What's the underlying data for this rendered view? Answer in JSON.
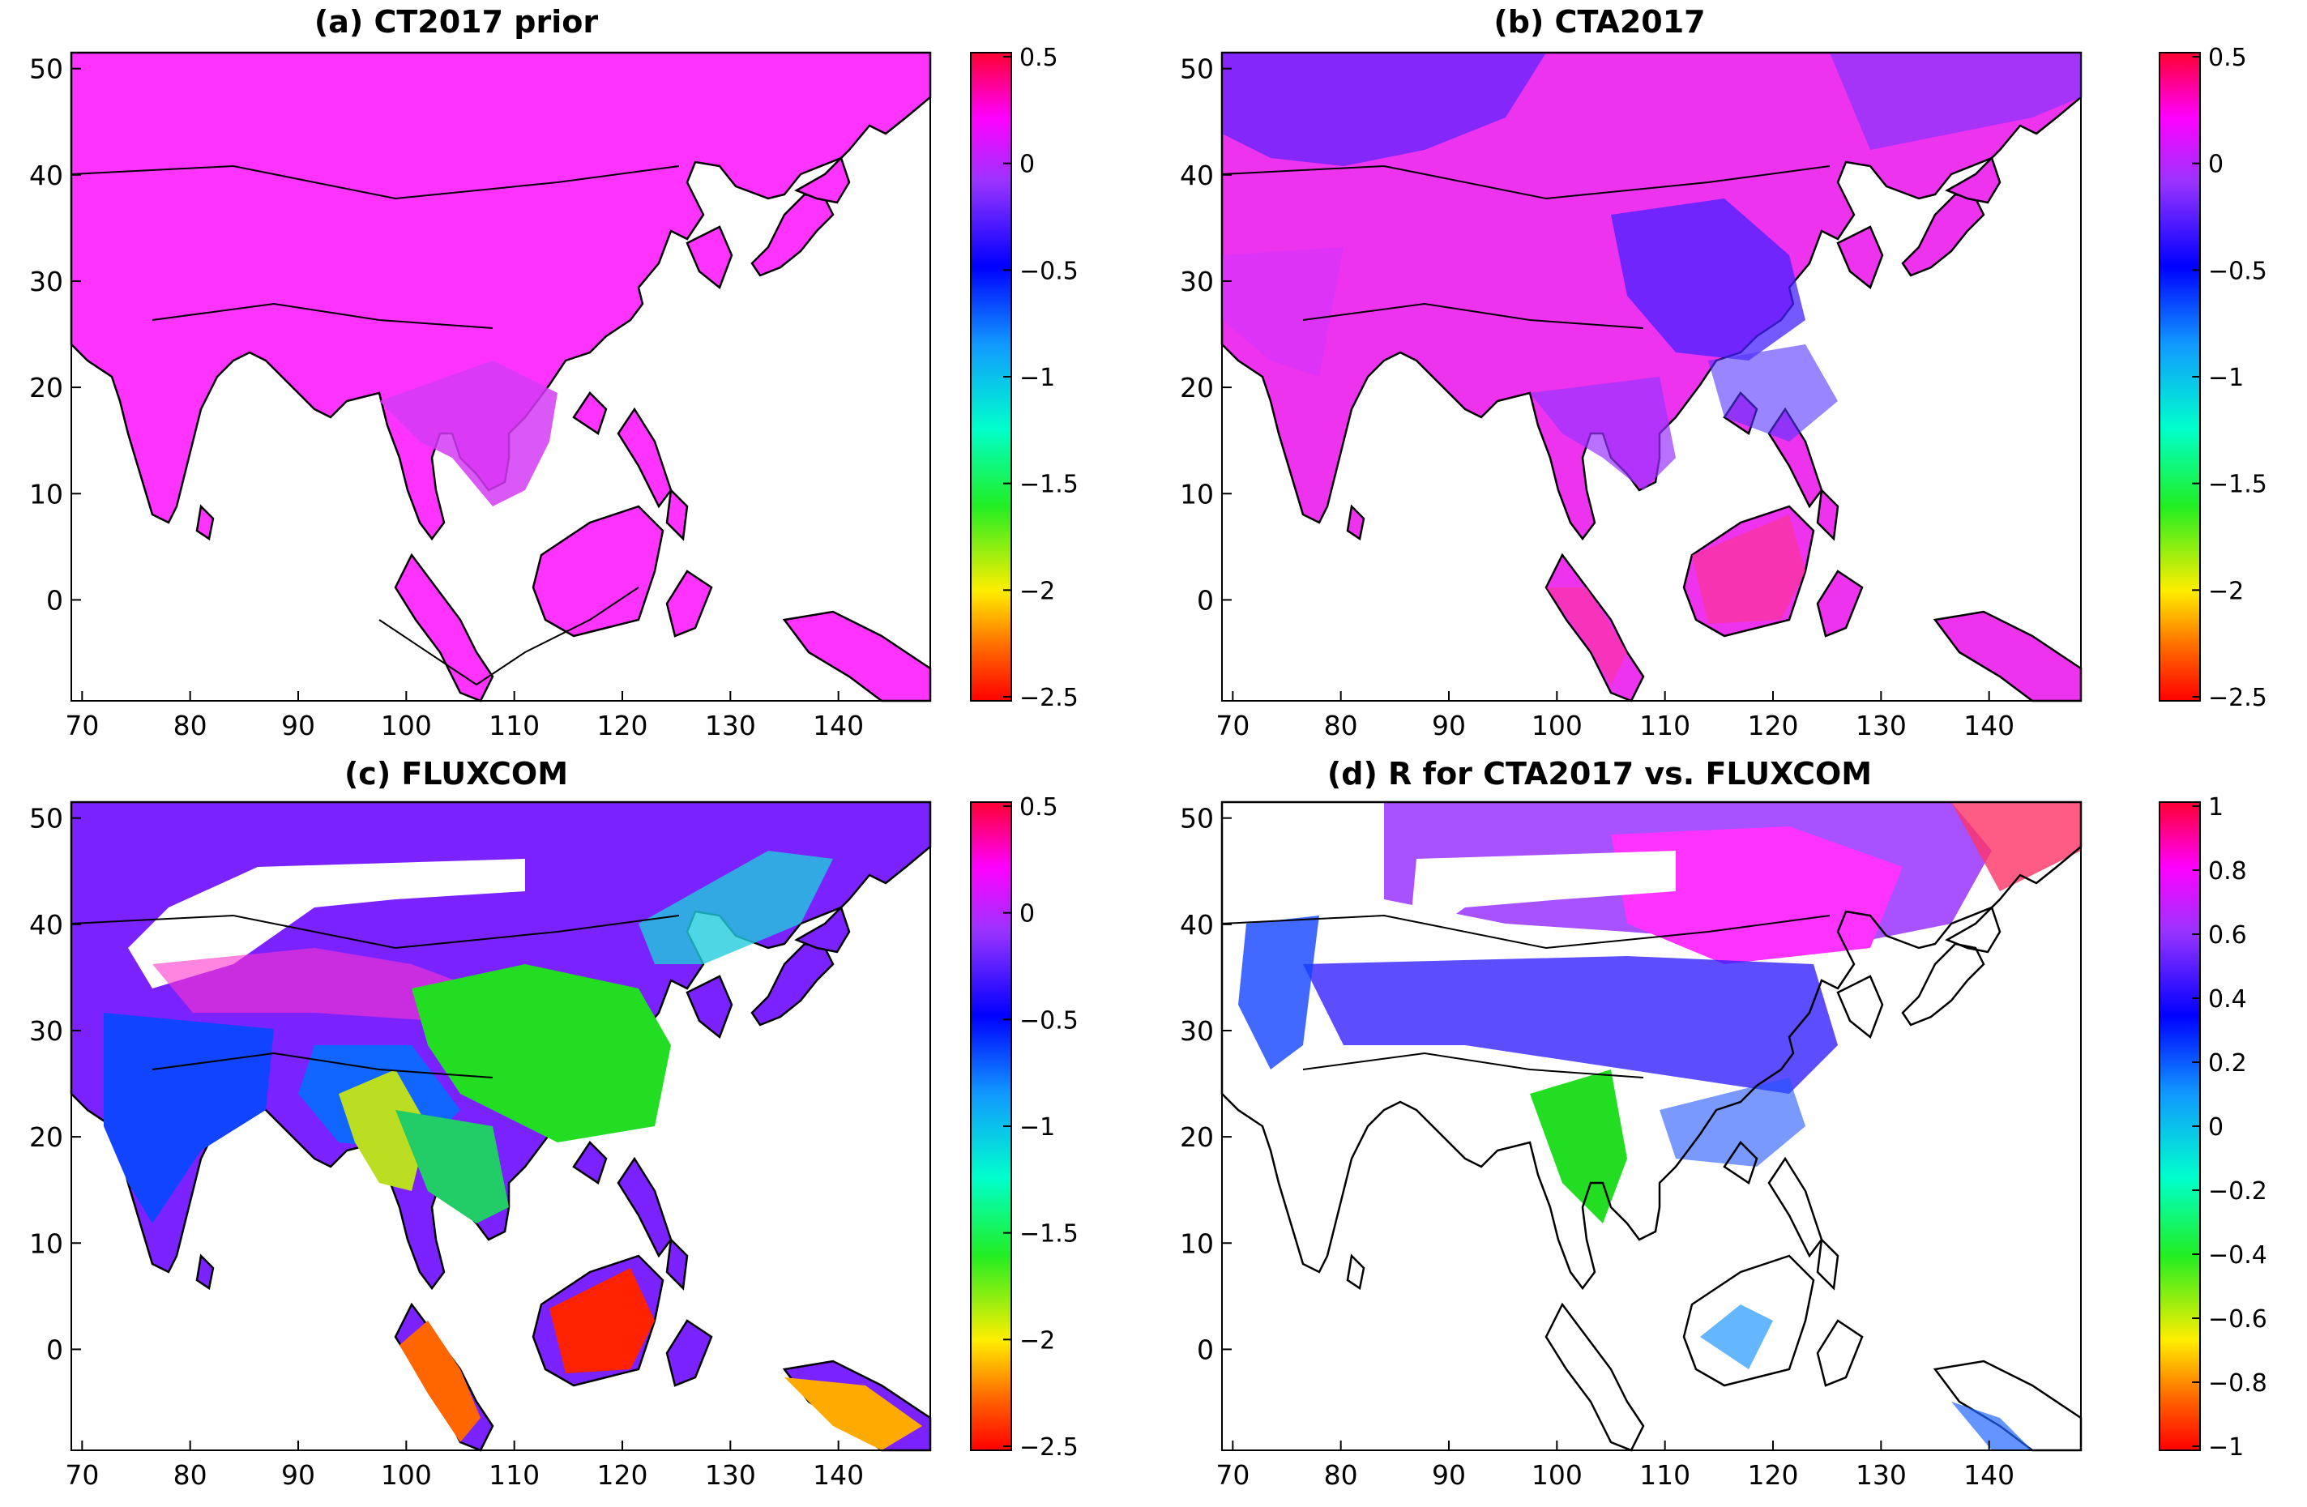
{
  "figure": {
    "panels": [
      {
        "id": "a",
        "title": "(a) CT2017 prior",
        "colorbar": {
          "ticks": [
            "0.5",
            "0",
            "−0.5",
            "−1",
            "−1.5",
            "−2",
            "−2.5"
          ],
          "range": [
            -2.5,
            0.5
          ],
          "colormap": "hsv"
        }
      },
      {
        "id": "b",
        "title": "(b) CTA2017",
        "colorbar": {
          "ticks": [
            "0.5",
            "0",
            "−0.5",
            "−1",
            "−1.5",
            "−2",
            "−2.5"
          ],
          "range": [
            -2.5,
            0.5
          ],
          "colormap": "hsv"
        }
      },
      {
        "id": "c",
        "title": "(c) FLUXCOM",
        "colorbar": {
          "ticks": [
            "0.5",
            "0",
            "−0.5",
            "−1",
            "−1.5",
            "−2",
            "−2.5"
          ],
          "range": [
            -2.5,
            0.5
          ],
          "colormap": "hsv"
        }
      },
      {
        "id": "d",
        "title": "(d) R for CTA2017 vs. FLUXCOM",
        "colorbar": {
          "ticks": [
            "1",
            "0.8",
            "0.6",
            "0.4",
            "0.2",
            "0",
            "−0.2",
            "−0.4",
            "−0.6",
            "−0.8",
            "−1"
          ],
          "range": [
            -1,
            1
          ],
          "colormap": "hsv"
        }
      }
    ],
    "xaxis": {
      "ticks": [
        "70",
        "80",
        "90",
        "100",
        "110",
        "120",
        "130",
        "140"
      ],
      "range": [
        69,
        148.5
      ]
    },
    "yaxis": {
      "ticks": [
        "50",
        "40",
        "30",
        "20",
        "10",
        "0"
      ],
      "range": [
        -9.5,
        51.5
      ]
    },
    "colors": {
      "land_prior": "#ff33ff",
      "tropics_prior": "#d43cf5",
      "blue": "#3355ff",
      "green": "#22dd22",
      "red": "#ff2200",
      "white": "#ffffff"
    }
  }
}
